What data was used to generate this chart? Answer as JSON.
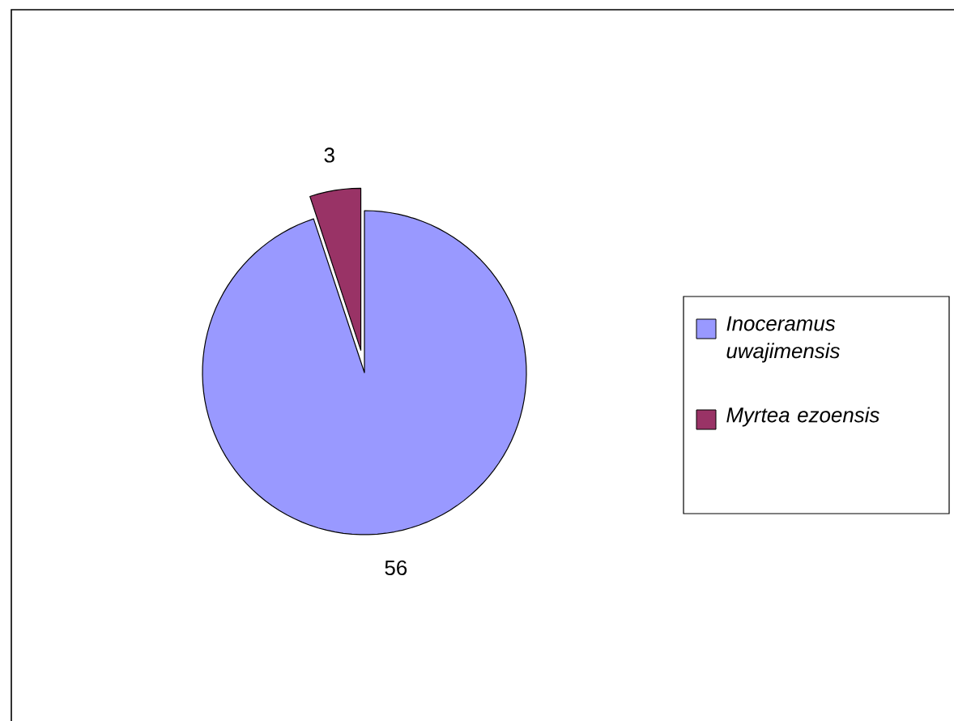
{
  "chart_data": {
    "type": "pie",
    "categories": [
      "Inoceramus uwajimensis",
      "Myrtea ezoensis"
    ],
    "values": [
      56,
      3
    ],
    "colors": [
      "#9999ff",
      "#993366"
    ],
    "data_labels": true,
    "legend": "right"
  }
}
